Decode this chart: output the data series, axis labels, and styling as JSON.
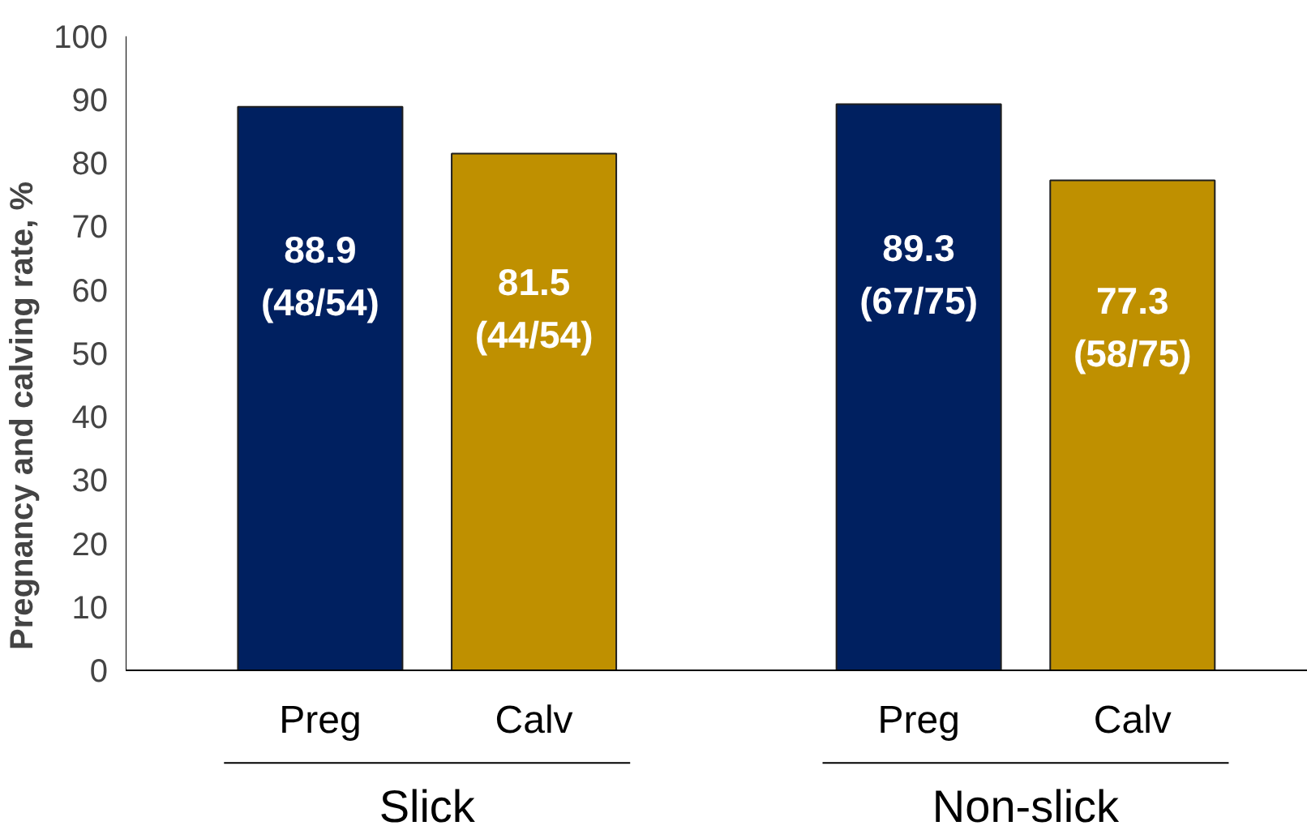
{
  "chart_data": {
    "type": "bar",
    "ylabel": "Pregnancy and calving rate, %",
    "categories": [
      "Preg",
      "Calv",
      "Preg",
      "Calv"
    ],
    "values": [
      88.9,
      81.5,
      89.3,
      77.3
    ],
    "colors": [
      "#002060",
      "#bf9000",
      "#002060",
      "#bf9000"
    ],
    "value_labels": [
      "88.9\n(48/54)",
      "81.5\n(44/54)",
      "89.3\n(67/75)",
      "77.3\n(58/75)"
    ],
    "annotations": [
      "Slick",
      "Non-slick"
    ],
    "ylim": [
      0,
      100
    ],
    "yticks": [
      0,
      10,
      20,
      30,
      40,
      50,
      60,
      70,
      80,
      90,
      100
    ],
    "grid": false
  }
}
